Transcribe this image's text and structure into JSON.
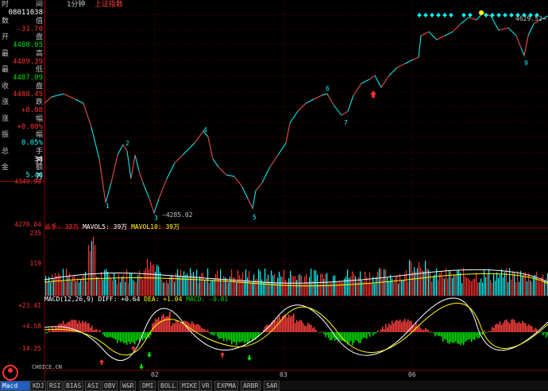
{
  "header": {
    "period": "1分钟",
    "index": "上证指数"
  },
  "info": {
    "rows": [
      {
        "l": "时",
        "r": "间",
        "v": "08011038",
        "cls": "wht"
      },
      {
        "l": "数",
        "r": "值",
        "v": "-31.70",
        "cls": "red"
      },
      {
        "l": "开",
        "r": "盘",
        "v": "4488.05",
        "cls": "grn"
      },
      {
        "l": "最",
        "r": "高",
        "v": "4489.39",
        "cls": "red"
      },
      {
        "l": "最",
        "r": "低",
        "v": "4487.09",
        "cls": "grn"
      },
      {
        "l": "收",
        "r": "盘",
        "v": "4488.45",
        "cls": "red"
      },
      {
        "l": "涨",
        "r": "跌",
        "v": "+0.08",
        "cls": "red"
      },
      {
        "l": "涨",
        "r": "幅",
        "v": "+0.00%",
        "cls": "red"
      },
      {
        "l": "振",
        "r": "幅",
        "v": "0.05%",
        "cls": "cyan"
      },
      {
        "l": "总",
        "r": "手",
        "v": "38",
        "cls": "wht"
      },
      {
        "l": "金",
        "r": "额",
        "v": "5.46",
        "cls": "cyan"
      }
    ],
    "wan1": "万",
    "wan2": "万"
  },
  "price_axis": {
    "labels": [
      "4349.90",
      "4270.04"
    ]
  },
  "price_annotations": {
    "low_value": "4285.02",
    "high_value": "4629.52",
    "waves": [
      "1",
      "2",
      "3",
      "4",
      "5",
      "6",
      "7",
      "9"
    ]
  },
  "volume": {
    "header_total": "总手: 38万",
    "mavol5": "MAVOL5: 39万",
    "mavol10": "MAVOL10: 39万",
    "axis": [
      "235",
      "119"
    ]
  },
  "macd": {
    "header": "MACD(12,26,9)",
    "diff": "DIFF: +0.64",
    "dea": "DEA: +1.04",
    "macd": "MACD: -0.81",
    "axis": [
      "+23.41",
      "+4.58",
      "-14.25"
    ]
  },
  "x_axis": [
    "02",
    "03",
    "06"
  ],
  "tabs": [
    "KDJ",
    "RSI",
    "BIAS",
    "ASI",
    "OBV",
    "W&R",
    "DMI",
    "BOLL",
    "MIKE",
    "VR",
    "EXPMA",
    "ARBR",
    "SAR"
  ],
  "active_tab": "Macd",
  "logo_text": "CHOICE.CN",
  "colors": {
    "up": "#ff3030",
    "down": "#00ffff",
    "macd_pos": "#ff4040",
    "macd_neg": "#00e000",
    "grid": "#800000"
  }
}
